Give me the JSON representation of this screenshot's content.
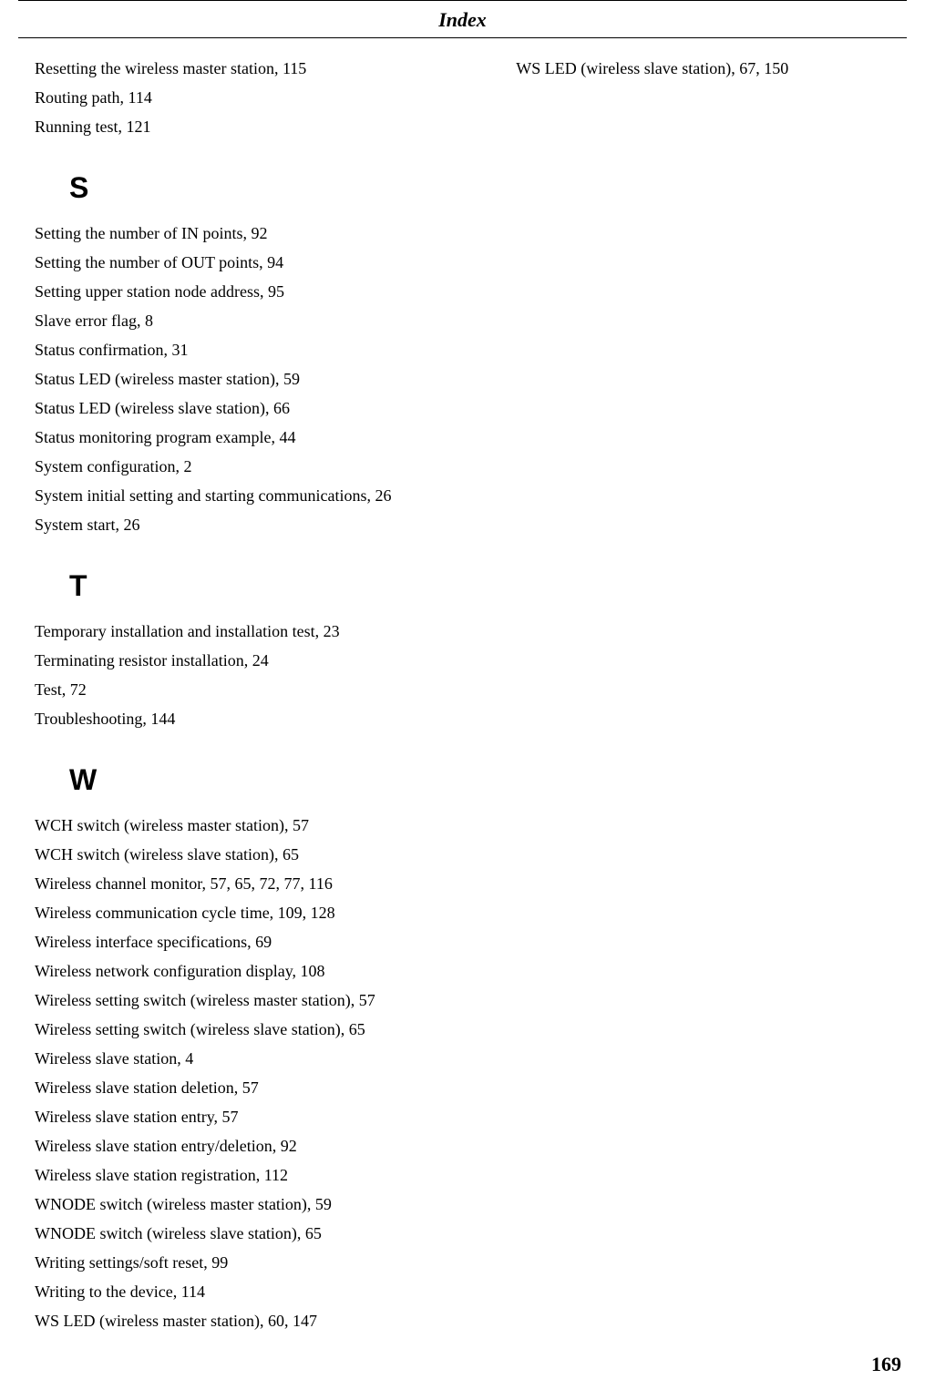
{
  "header": {
    "title": "Index"
  },
  "columns": {
    "left": [
      {
        "type": "entry",
        "text": "Resetting the wireless master station, 115"
      },
      {
        "type": "entry",
        "text": "Routing path, 114"
      },
      {
        "type": "entry",
        "text": "Running test, 121"
      },
      {
        "type": "letter",
        "text": "S"
      },
      {
        "type": "entry",
        "text": "Setting the number of IN points, 92"
      },
      {
        "type": "entry",
        "text": "Setting the number of OUT points, 94"
      },
      {
        "type": "entry",
        "text": "Setting upper station node address, 95"
      },
      {
        "type": "entry",
        "text": "Slave error flag, 8"
      },
      {
        "type": "entry",
        "text": "Status confirmation, 31"
      },
      {
        "type": "entry",
        "text": "Status LED (wireless master station), 59"
      },
      {
        "type": "entry",
        "text": "Status LED (wireless slave station), 66"
      },
      {
        "type": "entry",
        "text": "Status monitoring program example, 44"
      },
      {
        "type": "entry",
        "text": "System configuration, 2"
      },
      {
        "type": "entry",
        "text": "System initial setting and starting communications, 26"
      },
      {
        "type": "entry",
        "text": "System start, 26"
      },
      {
        "type": "letter",
        "text": "T"
      },
      {
        "type": "entry",
        "text": "Temporary installation and installation test, 23"
      },
      {
        "type": "entry",
        "text": "Terminating resistor installation, 24"
      },
      {
        "type": "entry",
        "text": "Test, 72"
      },
      {
        "type": "entry",
        "text": "Troubleshooting, 144"
      },
      {
        "type": "letter",
        "text": "W"
      },
      {
        "type": "entry",
        "text": "WCH switch (wireless master station), 57"
      },
      {
        "type": "entry",
        "text": "WCH switch (wireless slave station), 65"
      },
      {
        "type": "entry",
        "text": "Wireless channel monitor, 57, 65, 72, 77, 116"
      },
      {
        "type": "entry",
        "text": "Wireless communication cycle time, 109, 128"
      },
      {
        "type": "entry",
        "text": "Wireless interface specifications, 69"
      },
      {
        "type": "entry",
        "text": "Wireless network configuration display, 108"
      },
      {
        "type": "entry",
        "text": "Wireless setting switch (wireless master station), 57"
      },
      {
        "type": "entry",
        "text": "Wireless setting switch (wireless slave station), 65"
      },
      {
        "type": "entry",
        "text": "Wireless slave station, 4"
      },
      {
        "type": "entry",
        "text": "Wireless slave station deletion, 57"
      },
      {
        "type": "entry",
        "text": "Wireless slave station entry, 57"
      },
      {
        "type": "entry",
        "text": "Wireless slave station entry/deletion, 92"
      },
      {
        "type": "entry",
        "text": "Wireless slave station registration, 112"
      },
      {
        "type": "entry",
        "text": "WNODE switch (wireless master station), 59"
      },
      {
        "type": "entry",
        "text": "WNODE switch (wireless slave station), 65"
      },
      {
        "type": "entry",
        "text": "Writing settings/soft reset, 99"
      },
      {
        "type": "entry",
        "text": "Writing to the device, 114"
      },
      {
        "type": "entry",
        "text": "WS LED (wireless master station), 60, 147"
      }
    ],
    "right": [
      {
        "type": "entry",
        "text": "WS LED (wireless slave station), 67, 150"
      }
    ]
  },
  "page_number": "169"
}
